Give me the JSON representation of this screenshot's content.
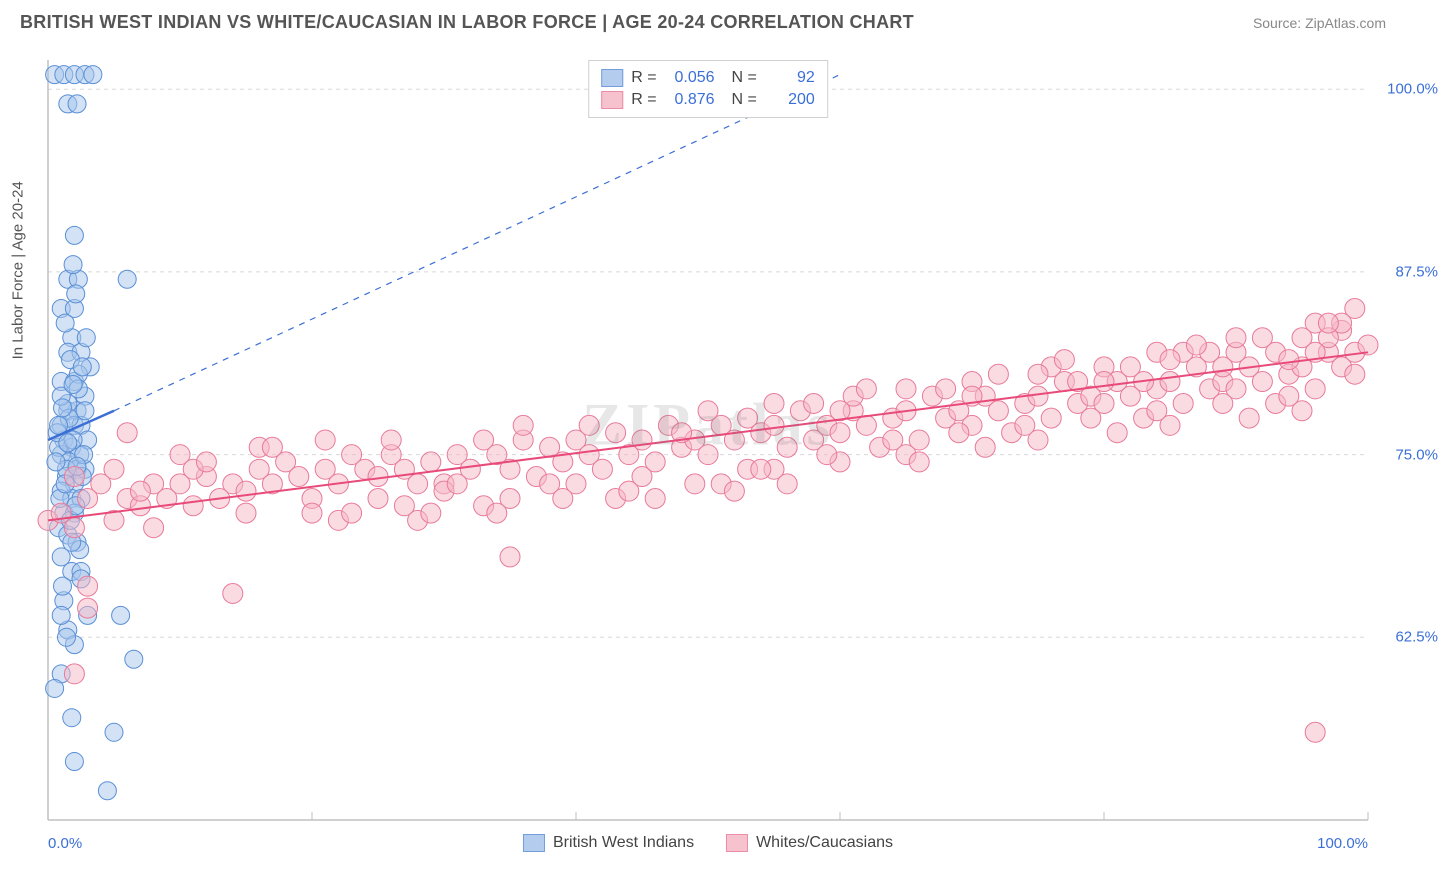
{
  "header": {
    "title": "BRITISH WEST INDIAN VS WHITE/CAUCASIAN IN LABOR FORCE | AGE 20-24 CORRELATION CHART",
    "source": "Source: ZipAtlas.com"
  },
  "chart": {
    "type": "scatter",
    "y_axis_label": "In Labor Force | Age 20-24",
    "watermark": "ZIPatlas",
    "xlim": [
      0,
      100
    ],
    "ylim": [
      50,
      102
    ],
    "x_ticks": [
      0,
      20,
      40,
      60,
      80,
      100
    ],
    "x_tick_labels_shown": [
      "0.0%",
      "100.0%"
    ],
    "y_ticks": [
      62.5,
      75.0,
      87.5,
      100.0
    ],
    "y_tick_labels": [
      "62.5%",
      "75.0%",
      "87.5%",
      "100.0%"
    ],
    "grid_color": "#d8d8d8",
    "axis_color": "#c0c0c0",
    "background_color": "#ffffff",
    "tick_label_color": "#3b6fd6",
    "series": [
      {
        "name": "British West Indians",
        "color_fill": "#a8c5ec",
        "color_stroke": "#5a8fd6",
        "fill_opacity": 0.5,
        "marker_radius": 9,
        "R": "0.056",
        "N": "92",
        "trend_line": {
          "x1": 0,
          "y1": 76.0,
          "x2": 5,
          "y2": 78.0,
          "dashed_extension": {
            "x2": 60,
            "y2": 101
          }
        },
        "trend_color": "#3b6fd6",
        "points": [
          [
            0.5,
            101
          ],
          [
            1.2,
            101
          ],
          [
            2.0,
            101
          ],
          [
            2.8,
            101
          ],
          [
            3.4,
            101
          ],
          [
            1.5,
            99
          ],
          [
            2.2,
            99
          ],
          [
            2.0,
            90
          ],
          [
            1.5,
            87
          ],
          [
            2.3,
            87
          ],
          [
            6.0,
            87
          ],
          [
            1.0,
            85
          ],
          [
            2.0,
            85
          ],
          [
            1.8,
            83
          ],
          [
            1.5,
            82
          ],
          [
            2.5,
            82
          ],
          [
            3.2,
            81
          ],
          [
            1.0,
            80
          ],
          [
            2.0,
            80
          ],
          [
            2.8,
            79
          ],
          [
            1.5,
            78
          ],
          [
            2.2,
            78
          ],
          [
            1.0,
            77
          ],
          [
            2.0,
            77
          ],
          [
            2.5,
            77
          ],
          [
            3.0,
            76
          ],
          [
            1.2,
            76
          ],
          [
            1.8,
            75.5
          ],
          [
            2.4,
            75
          ],
          [
            1.0,
            75
          ],
          [
            1.6,
            74.5
          ],
          [
            2.2,
            74
          ],
          [
            2.8,
            74
          ],
          [
            1.4,
            73.5
          ],
          [
            2.0,
            73
          ],
          [
            1.0,
            72.5
          ],
          [
            1.8,
            72
          ],
          [
            2.5,
            72
          ],
          [
            1.2,
            71
          ],
          [
            2.0,
            71
          ],
          [
            0.8,
            70
          ],
          [
            1.5,
            69.5
          ],
          [
            2.2,
            69
          ],
          [
            1.0,
            68
          ],
          [
            1.8,
            67
          ],
          [
            2.5,
            67
          ],
          [
            1.2,
            65
          ],
          [
            3.0,
            64
          ],
          [
            5.5,
            64
          ],
          [
            1.5,
            63
          ],
          [
            2.0,
            62
          ],
          [
            6.5,
            61
          ],
          [
            1.0,
            60
          ],
          [
            0.5,
            59
          ],
          [
            1.8,
            57
          ],
          [
            5.0,
            56
          ],
          [
            2.0,
            54
          ],
          [
            4.5,
            52
          ],
          [
            1.5,
            78.5
          ],
          [
            2.8,
            78
          ],
          [
            1.0,
            79
          ],
          [
            2.3,
            80.5
          ],
          [
            1.7,
            81.5
          ],
          [
            2.9,
            83
          ],
          [
            1.3,
            84
          ],
          [
            2.1,
            86
          ],
          [
            1.9,
            88
          ],
          [
            0.8,
            75.5
          ],
          [
            1.4,
            74
          ],
          [
            2.6,
            73.5
          ],
          [
            0.9,
            72
          ],
          [
            1.7,
            70.5
          ],
          [
            2.4,
            68.5
          ],
          [
            1.1,
            66
          ],
          [
            0.7,
            76.5
          ],
          [
            1.6,
            77.5
          ],
          [
            2.3,
            79.5
          ],
          [
            1.9,
            76
          ],
          [
            2.7,
            75
          ],
          [
            1.3,
            73
          ],
          [
            0.6,
            74.5
          ],
          [
            2.1,
            71.5
          ],
          [
            1.8,
            69
          ],
          [
            2.5,
            66.5
          ],
          [
            1.0,
            64
          ],
          [
            1.4,
            62.5
          ],
          [
            0.8,
            77
          ],
          [
            1.5,
            75.8
          ],
          [
            2.2,
            74.2
          ],
          [
            1.1,
            78.2
          ],
          [
            1.9,
            79.8
          ],
          [
            2.6,
            81
          ]
        ]
      },
      {
        "name": "Whites/Caucasians",
        "color_fill": "#f5b8c5",
        "color_stroke": "#e87a9a",
        "fill_opacity": 0.5,
        "marker_radius": 10,
        "R": "0.876",
        "N": "200",
        "trend_line": {
          "x1": 0,
          "y1": 70.5,
          "x2": 100,
          "y2": 82.0
        },
        "trend_color": "#e84a7a",
        "points": [
          [
            2,
            60
          ],
          [
            3,
            64.5
          ],
          [
            0,
            70.5
          ],
          [
            1,
            71
          ],
          [
            2,
            70
          ],
          [
            3,
            72
          ],
          [
            4,
            73
          ],
          [
            3,
            66
          ],
          [
            2,
            73.5
          ],
          [
            5,
            70.5
          ],
          [
            6,
            72
          ],
          [
            7,
            71.5
          ],
          [
            8,
            73
          ],
          [
            5,
            74
          ],
          [
            6,
            76.5
          ],
          [
            7,
            72.5
          ],
          [
            14,
            65.5
          ],
          [
            9,
            72
          ],
          [
            10,
            73
          ],
          [
            11,
            71.5
          ],
          [
            12,
            73.5
          ],
          [
            13,
            72
          ],
          [
            10,
            75
          ],
          [
            11,
            74
          ],
          [
            8,
            70
          ],
          [
            14,
            73
          ],
          [
            15,
            72.5
          ],
          [
            16,
            74
          ],
          [
            17,
            73
          ],
          [
            18,
            74.5
          ],
          [
            15,
            71
          ],
          [
            16,
            75.5
          ],
          [
            19,
            73.5
          ],
          [
            20,
            72
          ],
          [
            21,
            74
          ],
          [
            22,
            73
          ],
          [
            23,
            75
          ],
          [
            20,
            71
          ],
          [
            21,
            76
          ],
          [
            22,
            70.5
          ],
          [
            24,
            74
          ],
          [
            25,
            73.5
          ],
          [
            26,
            75
          ],
          [
            27,
            74
          ],
          [
            28,
            73
          ],
          [
            25,
            72
          ],
          [
            26,
            76
          ],
          [
            27,
            71.5
          ],
          [
            29,
            74.5
          ],
          [
            30,
            73
          ],
          [
            31,
            75
          ],
          [
            32,
            74
          ],
          [
            33,
            76
          ],
          [
            30,
            72.5
          ],
          [
            31,
            73
          ],
          [
            35,
            68
          ],
          [
            34,
            75
          ],
          [
            35,
            74
          ],
          [
            36,
            76
          ],
          [
            37,
            73.5
          ],
          [
            38,
            75.5
          ],
          [
            35,
            72
          ],
          [
            36,
            77
          ],
          [
            39,
            74.5
          ],
          [
            40,
            76
          ],
          [
            41,
            75
          ],
          [
            42,
            74
          ],
          [
            43,
            76.5
          ],
          [
            40,
            73
          ],
          [
            41,
            77
          ],
          [
            44,
            75
          ],
          [
            45,
            76
          ],
          [
            46,
            74.5
          ],
          [
            47,
            77
          ],
          [
            48,
            75.5
          ],
          [
            45,
            73.5
          ],
          [
            46,
            72
          ],
          [
            49,
            76
          ],
          [
            50,
            75
          ],
          [
            51,
            77
          ],
          [
            52,
            76
          ],
          [
            53,
            74
          ],
          [
            50,
            78
          ],
          [
            51,
            73
          ],
          [
            52,
            72.5
          ],
          [
            54,
            76.5
          ],
          [
            55,
            77
          ],
          [
            56,
            75.5
          ],
          [
            57,
            78
          ],
          [
            58,
            76
          ],
          [
            55,
            74
          ],
          [
            56,
            73
          ],
          [
            59,
            77
          ],
          [
            60,
            76.5
          ],
          [
            61,
            78
          ],
          [
            62,
            77
          ],
          [
            63,
            75.5
          ],
          [
            60,
            74.5
          ],
          [
            61,
            79
          ],
          [
            64,
            77.5
          ],
          [
            65,
            78
          ],
          [
            66,
            76
          ],
          [
            67,
            79
          ],
          [
            68,
            77.5
          ],
          [
            65,
            75
          ],
          [
            66,
            74.5
          ],
          [
            69,
            78
          ],
          [
            70,
            77
          ],
          [
            71,
            79
          ],
          [
            72,
            78
          ],
          [
            73,
            76.5
          ],
          [
            70,
            80
          ],
          [
            71,
            75.5
          ],
          [
            74,
            78.5
          ],
          [
            75,
            79
          ],
          [
            76,
            77.5
          ],
          [
            77,
            80
          ],
          [
            78,
            78.5
          ],
          [
            75,
            76
          ],
          [
            76,
            81
          ],
          [
            79,
            79
          ],
          [
            80,
            78.5
          ],
          [
            81,
            80
          ],
          [
            82,
            79
          ],
          [
            83,
            77.5
          ],
          [
            80,
            81
          ],
          [
            81,
            76.5
          ],
          [
            84,
            79.5
          ],
          [
            85,
            80
          ],
          [
            86,
            78.5
          ],
          [
            87,
            81
          ],
          [
            88,
            79.5
          ],
          [
            85,
            77
          ],
          [
            86,
            82
          ],
          [
            89,
            80
          ],
          [
            90,
            79.5
          ],
          [
            91,
            81
          ],
          [
            92,
            80
          ],
          [
            93,
            78.5
          ],
          [
            90,
            82
          ],
          [
            91,
            77.5
          ],
          [
            94,
            80.5
          ],
          [
            95,
            81
          ],
          [
            96,
            79.5
          ],
          [
            97,
            82
          ],
          [
            98,
            83.5
          ],
          [
            95,
            78
          ],
          [
            96,
            84
          ],
          [
            98,
            81
          ],
          [
            99,
            82
          ],
          [
            99,
            80.5
          ],
          [
            97,
            83
          ],
          [
            98,
            84
          ],
          [
            99,
            85
          ],
          [
            100,
            82.5
          ],
          [
            93,
            82
          ],
          [
            94,
            81.5
          ],
          [
            95,
            83
          ],
          [
            96,
            82
          ],
          [
            88,
            82
          ],
          [
            89,
            81
          ],
          [
            90,
            83
          ],
          [
            82,
            81
          ],
          [
            83,
            80
          ],
          [
            84,
            82
          ],
          [
            77,
            81.5
          ],
          [
            78,
            80
          ],
          [
            72,
            80.5
          ],
          [
            68,
            79.5
          ],
          [
            62,
            79.5
          ],
          [
            58,
            78.5
          ],
          [
            53,
            77.5
          ],
          [
            48,
            76.5
          ],
          [
            43,
            72
          ],
          [
            38,
            73
          ],
          [
            33,
            71.5
          ],
          [
            28,
            70.5
          ],
          [
            96,
            56
          ],
          [
            12,
            74.5
          ],
          [
            17,
            75.5
          ],
          [
            23,
            71
          ],
          [
            29,
            71
          ],
          [
            34,
            71
          ],
          [
            39,
            72
          ],
          [
            44,
            72.5
          ],
          [
            49,
            73
          ],
          [
            54,
            74
          ],
          [
            59,
            75
          ],
          [
            64,
            76
          ],
          [
            69,
            76.5
          ],
          [
            74,
            77
          ],
          [
            79,
            77.5
          ],
          [
            84,
            78
          ],
          [
            89,
            78.5
          ],
          [
            94,
            79
          ],
          [
            87,
            82.5
          ],
          [
            92,
            83
          ],
          [
            97,
            84
          ],
          [
            85,
            81.5
          ],
          [
            80,
            80
          ],
          [
            75,
            80.5
          ],
          [
            70,
            79
          ],
          [
            65,
            79.5
          ],
          [
            60,
            78
          ],
          [
            55,
            78.5
          ]
        ]
      }
    ]
  },
  "legend_bottom": {
    "items": [
      "British West Indians",
      "Whites/Caucasians"
    ]
  }
}
